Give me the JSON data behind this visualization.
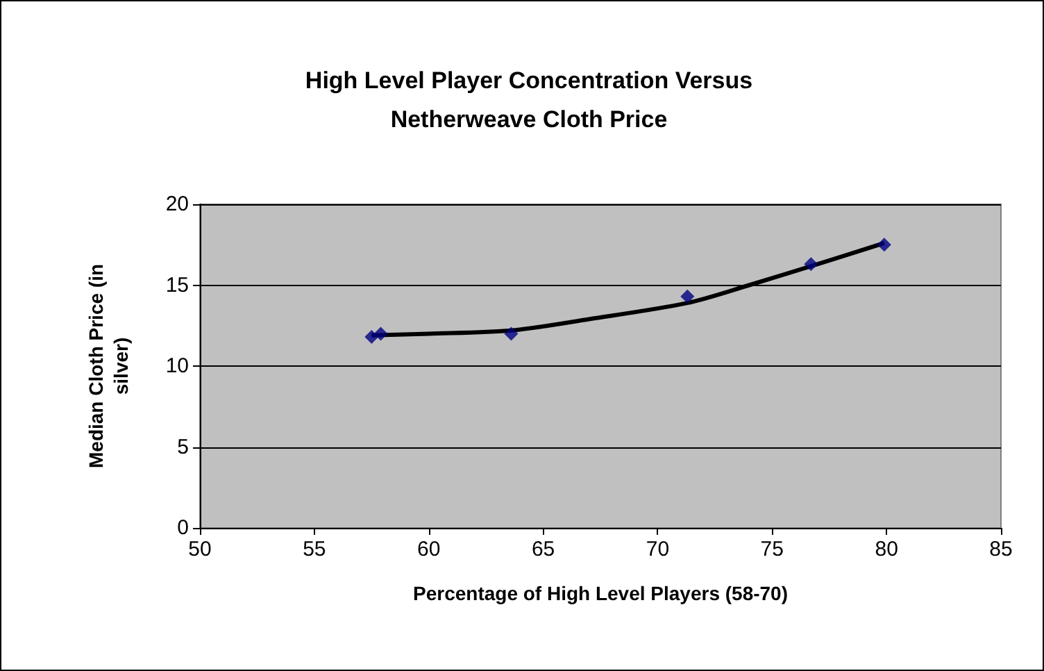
{
  "chart_data": {
    "type": "scatter",
    "title": "High Level Player Concentration Versus\nNetherweave Cloth Price",
    "xlabel": "Percentage of High Level Players (58-70)",
    "ylabel": "Median Cloth Price (in\nsilver)",
    "series": [
      {
        "color": "#000080",
        "marker": "diamond",
        "x": [
          57.5,
          57.9,
          63.6,
          71.3,
          76.7,
          79.9
        ],
        "values": [
          11.8,
          12.0,
          12.0,
          14.3,
          16.3,
          17.5
        ]
      },
      {
        "type": "line",
        "color": "#000000",
        "marker": "none",
        "x": [
          57.5,
          60,
          63.6,
          67,
          71.3,
          74,
          77,
          79.9
        ],
        "values": [
          11.9,
          12.0,
          12.2,
          12.9,
          13.9,
          15.0,
          16.3,
          17.6
        ]
      }
    ],
    "xlim": [
      50,
      85
    ],
    "xticks": [
      50,
      55,
      60,
      65,
      70,
      75,
      80,
      85
    ],
    "ylim": [
      0,
      20
    ],
    "yticks": [
      0,
      5,
      10,
      15,
      20
    ],
    "grid": "y"
  }
}
